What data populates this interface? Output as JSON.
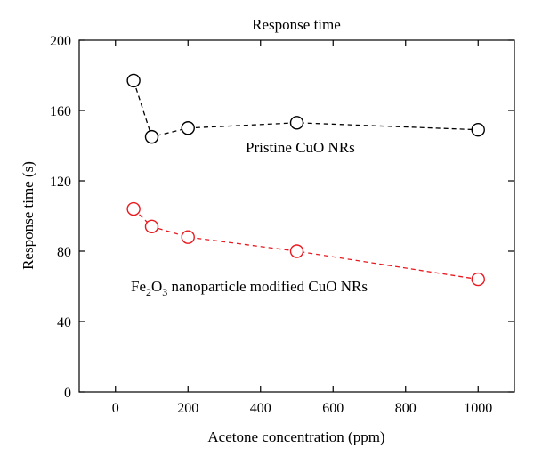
{
  "chart_data": {
    "type": "line",
    "title": "Response time",
    "xlabel": "Acetone concentration (ppm)",
    "ylabel": "Response time (s)",
    "xlim": [
      -100,
      1100
    ],
    "ylim": [
      0,
      200
    ],
    "xticks": [
      0,
      200,
      400,
      600,
      800,
      1000
    ],
    "yticks": [
      0,
      40,
      80,
      120,
      160,
      200
    ],
    "grid": false,
    "series": [
      {
        "name": "Pristine CuO NRs",
        "color": "#000000",
        "line_style": "dashed",
        "marker": "open-circle",
        "x": [
          50,
          100,
          200,
          500,
          1000
        ],
        "y": [
          177,
          145,
          150,
          153,
          149
        ]
      },
      {
        "name": "Fe2O3 nanoparticle modified CuO NRs",
        "color": "#e8191f",
        "line_style": "dashed",
        "marker": "open-circle",
        "x": [
          50,
          100,
          200,
          500,
          1000
        ],
        "y": [
          104,
          94,
          88,
          80,
          64
        ]
      }
    ],
    "annotations": [
      {
        "text": "Pristine CuO NRs",
        "color": "#000000"
      },
      {
        "text_main": "Fe",
        "sub1": "2",
        "text_mid": "O",
        "sub2": "3",
        "text_rest": " nanoparticle modified CuO NRs",
        "color": "#e8191f"
      }
    ]
  }
}
